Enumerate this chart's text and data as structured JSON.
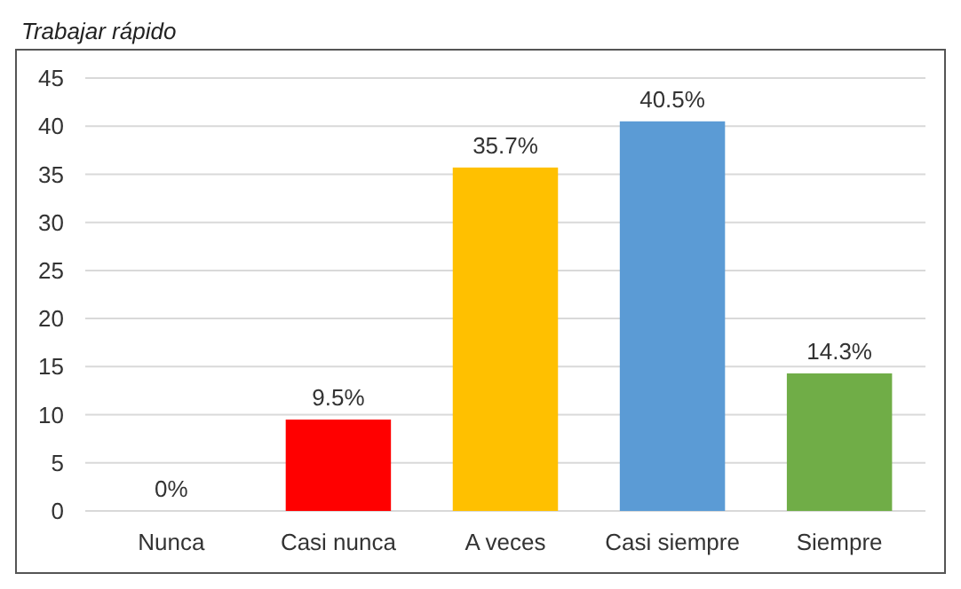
{
  "chart_data": {
    "type": "bar",
    "title": "Trabajar rápido",
    "categories": [
      "Nunca",
      "Casi nunca",
      "A veces",
      "Casi siempre",
      "Siempre"
    ],
    "values": [
      0,
      9.5,
      35.7,
      40.5,
      14.3
    ],
    "colors": [
      "#a5a5a5",
      "#ff0000",
      "#ffc000",
      "#5b9bd5",
      "#70ad47"
    ],
    "value_labels": [
      "0%",
      "9.5%",
      "35.7%",
      "40.5%",
      "14.3%"
    ],
    "ylim": [
      0,
      45
    ],
    "yticks": [
      0,
      5,
      10,
      15,
      20,
      25,
      30,
      35,
      40,
      45
    ],
    "grid": "y"
  }
}
